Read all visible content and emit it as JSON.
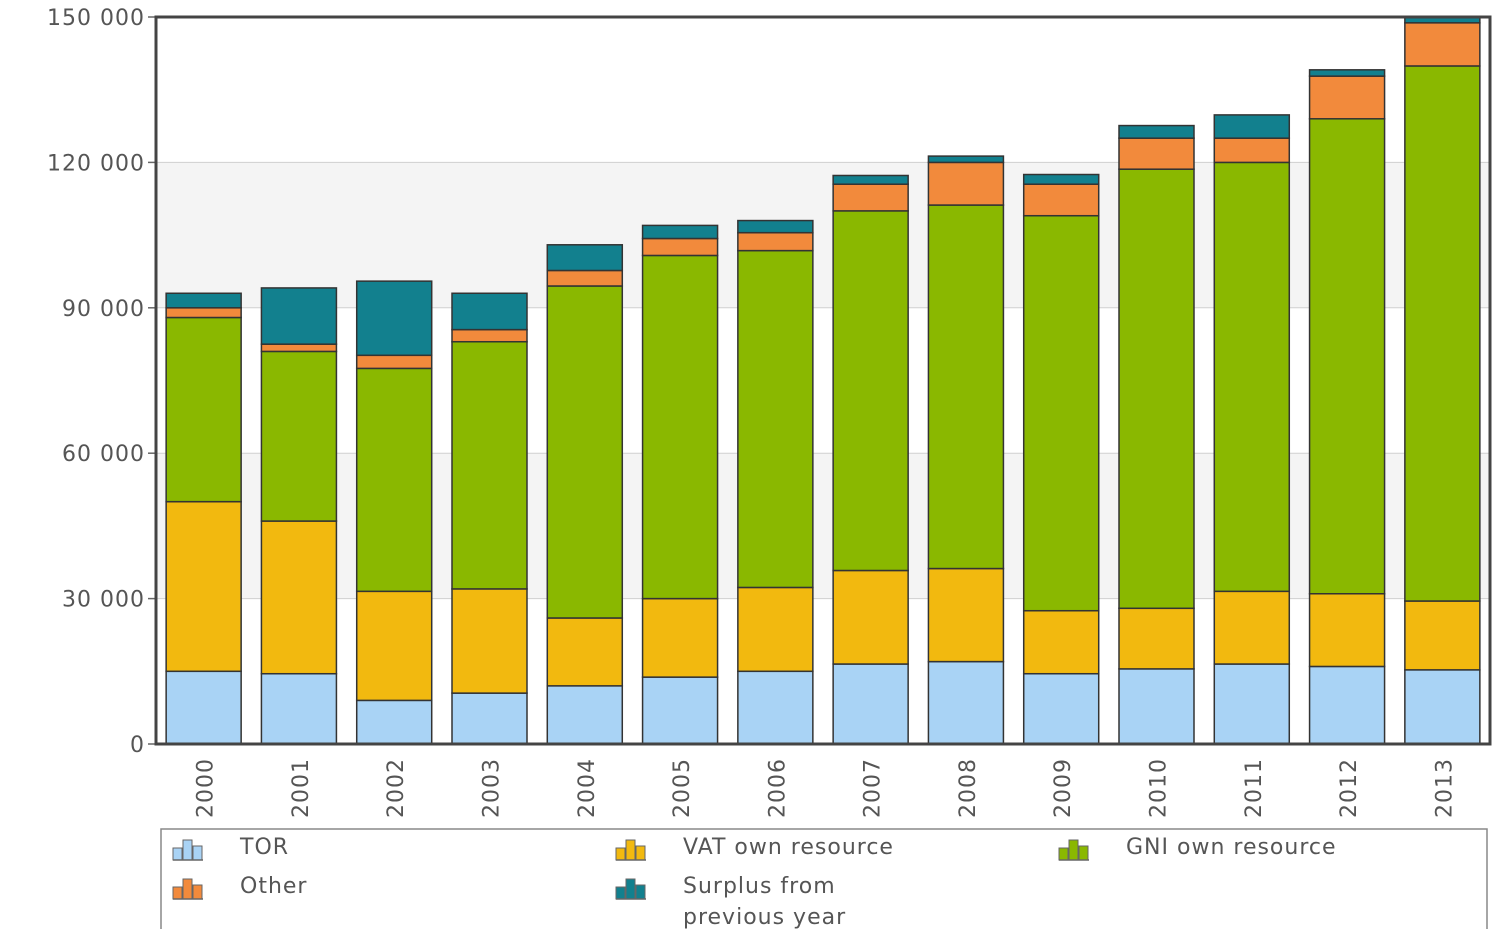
{
  "chart_data": {
    "type": "bar",
    "stacked": true,
    "categories": [
      "2000",
      "2001",
      "2002",
      "2003",
      "2004",
      "2005",
      "2006",
      "2007",
      "2008",
      "2009",
      "2010",
      "2011",
      "2012",
      "2013"
    ],
    "series": [
      {
        "name": "TOR",
        "color": "#a9d3f5",
        "values": [
          15000,
          14500,
          9000,
          10500,
          12000,
          13800,
          15000,
          16500,
          17000,
          14500,
          15500,
          16500,
          16000,
          15300
        ]
      },
      {
        "name": "VAT own resource",
        "color": "#f2b90f",
        "values": [
          35000,
          31500,
          22500,
          21500,
          14000,
          16200,
          17300,
          19300,
          19200,
          13000,
          12500,
          15000,
          15000,
          14200
        ]
      },
      {
        "name": "GNI own resource",
        "color": "#8ab800",
        "values": [
          38000,
          35000,
          46000,
          51000,
          68500,
          70800,
          69500,
          74200,
          75000,
          81500,
          90600,
          88500,
          98000,
          110400
        ]
      },
      {
        "name": "Other",
        "color": "#f28a3c",
        "values": [
          2000,
          1500,
          2700,
          2500,
          3200,
          3500,
          3700,
          5500,
          8800,
          6500,
          6400,
          5000,
          8800,
          8900
        ]
      },
      {
        "name": "Surplus from previous year",
        "color": "#12808e",
        "values": [
          3000,
          11600,
          15300,
          7500,
          5300,
          2700,
          2500,
          1800,
          1300,
          2000,
          2600,
          4800,
          1300,
          1200
        ]
      }
    ],
    "ylim": [
      0,
      150000
    ],
    "yticks": [
      0,
      30000,
      60000,
      90000,
      120000,
      150000
    ],
    "ytick_labels": [
      "0",
      "30 000",
      "60 000",
      "90 000",
      "120 000",
      "150 000"
    ],
    "grid": true,
    "band_shading": true,
    "legend_position": "bottom"
  },
  "legend": {
    "items": [
      {
        "label": "TOR",
        "color": "#a9d3f5"
      },
      {
        "label": "VAT own resource",
        "color": "#f2b90f"
      },
      {
        "label": "GNI own resource",
        "color": "#8ab800"
      },
      {
        "label": "Other",
        "color": "#f28a3c"
      },
      {
        "label": "Surplus from",
        "label2": "previous year",
        "color": "#12808e"
      }
    ]
  }
}
